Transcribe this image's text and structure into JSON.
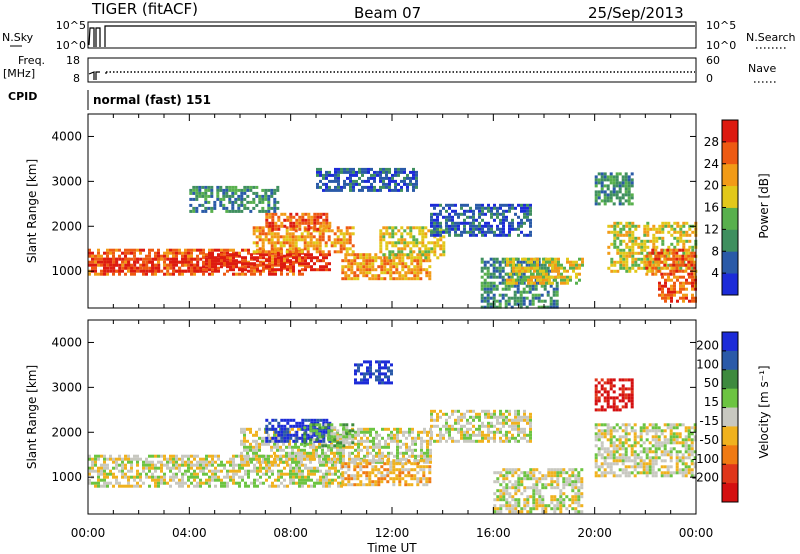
{
  "header": {
    "radar": "TIGER (fitACF)",
    "beam": "Beam 07",
    "date": "25/Sep/2013"
  },
  "top_panels": {
    "nsky_label": "N.Sky",
    "nsearch_label": "N.Search",
    "nsky_ticks": [
      "10^5",
      "10^0"
    ],
    "freq_label": "Freq.",
    "freq_unit": "[MHz]",
    "freq_ticks": [
      "18",
      "8"
    ],
    "nave_label": "Nave",
    "nave_ticks": [
      "60",
      "0"
    ],
    "cpid_label": "CPID",
    "cpid_text": "normal (fast) 151"
  },
  "colors": {
    "power": [
      "#1c2bd8",
      "#2a5aa8",
      "#3f8f5f",
      "#58b04d",
      "#e2c81a",
      "#f29b17",
      "#ee5a12",
      "#dd1a10"
    ],
    "velocity": [
      "#1c2bd8",
      "#2a5aa8",
      "#3e8a3e",
      "#6cc441",
      "#c8c8c0",
      "#f0b21e",
      "#f07a12",
      "#e0361a",
      "#d40f10"
    ]
  },
  "chart_data": [
    {
      "type": "heatmap",
      "title": "Power",
      "xlabel": "Time UT",
      "ylabel": "Slant Range [km]",
      "x_ticks": [
        "00:00",
        "04:00",
        "08:00",
        "12:00",
        "16:00",
        "20:00",
        "00:00"
      ],
      "xlim": [
        0,
        24
      ],
      "y_ticks": [
        1000,
        2000,
        3000,
        4000
      ],
      "ylim": [
        180,
        4500
      ],
      "colorbar": {
        "label": "Power [dB]",
        "ticks": [
          4,
          8,
          12,
          16,
          20,
          24,
          28
        ],
        "range": [
          0,
          32
        ]
      },
      "regions": [
        {
          "t0": 0,
          "t1": 8.5,
          "r0": 900,
          "r1": 1500,
          "level": 6
        },
        {
          "t0": 0.6,
          "t1": 4.5,
          "r0": 1000,
          "r1": 1300,
          "level": 7
        },
        {
          "t0": 4.5,
          "t1": 9.5,
          "r0": 1000,
          "r1": 1400,
          "level": 7
        },
        {
          "t0": 6.5,
          "t1": 10.5,
          "r0": 1400,
          "r1": 2000,
          "level": 5
        },
        {
          "t0": 7.0,
          "t1": 9.5,
          "r0": 1900,
          "r1": 2300,
          "level": 6
        },
        {
          "t0": 10.0,
          "t1": 13.5,
          "r0": 800,
          "r1": 1400,
          "level": 5
        },
        {
          "t0": 11.5,
          "t1": 14.0,
          "r0": 1300,
          "r1": 2000,
          "level": 4
        },
        {
          "t0": 13.5,
          "t1": 17.5,
          "r0": 1800,
          "r1": 2500,
          "level": 1
        },
        {
          "t0": 4.0,
          "t1": 7.5,
          "r0": 2300,
          "r1": 2900,
          "level": 2
        },
        {
          "t0": 9.0,
          "t1": 13.0,
          "r0": 2800,
          "r1": 3300,
          "level": 1
        },
        {
          "t0": 15.5,
          "t1": 18.5,
          "r0": 200,
          "r1": 1300,
          "level": 2
        },
        {
          "t0": 16.5,
          "t1": 19.5,
          "r0": 700,
          "r1": 1300,
          "level": 4
        },
        {
          "t0": 20.5,
          "t1": 24.0,
          "r0": 1000,
          "r1": 2100,
          "level": 4
        },
        {
          "t0": 22.0,
          "t1": 24.0,
          "r0": 900,
          "r1": 1500,
          "level": 6
        },
        {
          "t0": 22.5,
          "t1": 24.0,
          "r0": 300,
          "r1": 900,
          "level": 6
        },
        {
          "t0": 20.0,
          "t1": 21.5,
          "r0": 2500,
          "r1": 3200,
          "level": 2
        }
      ]
    },
    {
      "type": "heatmap",
      "title": "Velocity",
      "xlabel": "Time UT",
      "ylabel": "Slant Range [km]",
      "x_ticks": [
        "00:00",
        "04:00",
        "08:00",
        "12:00",
        "16:00",
        "20:00",
        "00:00"
      ],
      "xlim": [
        0,
        24
      ],
      "y_ticks": [
        1000,
        2000,
        3000,
        4000
      ],
      "ylim": [
        180,
        4500
      ],
      "colorbar": {
        "label": "Velocity [m s⁻¹]",
        "ticks": [
          "200",
          "100",
          "50",
          "15",
          "-15",
          "-50",
          "-100",
          "-200"
        ]
      },
      "regions": [
        {
          "t0": 0,
          "t1": 10.0,
          "r0": 800,
          "r1": 1500,
          "level": 4
        },
        {
          "t0": 6.0,
          "t1": 13.5,
          "r0": 1300,
          "r1": 2100,
          "level": 4
        },
        {
          "t0": 7.0,
          "t1": 9.5,
          "r0": 1800,
          "r1": 2300,
          "level": 0
        },
        {
          "t0": 8.5,
          "t1": 10.5,
          "r0": 1700,
          "r1": 2200,
          "level": 3
        },
        {
          "t0": 10.0,
          "t1": 13.5,
          "r0": 800,
          "r1": 1400,
          "level": 5
        },
        {
          "t0": 13.5,
          "t1": 17.5,
          "r0": 1800,
          "r1": 2500,
          "level": 4
        },
        {
          "t0": 16.0,
          "t1": 19.5,
          "r0": 200,
          "r1": 1200,
          "level": 4
        },
        {
          "t0": 20.0,
          "t1": 24.0,
          "r0": 1000,
          "r1": 2200,
          "level": 4
        },
        {
          "t0": 20.0,
          "t1": 21.5,
          "r0": 2500,
          "r1": 3200,
          "level": 8
        },
        {
          "t0": 10.5,
          "t1": 12.0,
          "r0": 3100,
          "r1": 3600,
          "level": 0
        }
      ]
    }
  ]
}
